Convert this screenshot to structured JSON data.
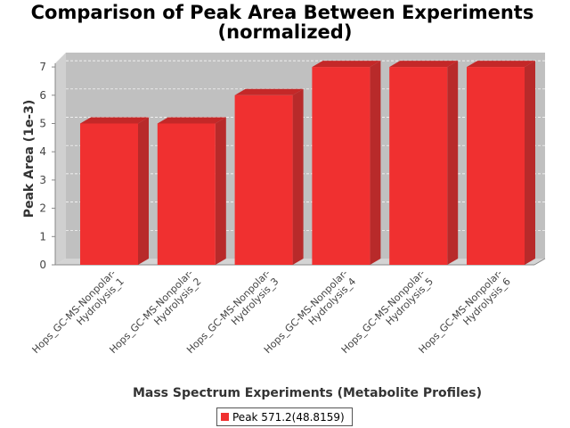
{
  "chart_data": {
    "type": "bar",
    "title_line1": "Comparison of Peak Area Between Experiments",
    "title_line2": "(normalized)",
    "xlabel": "Mass Spectrum Experiments (Metabolite Profiles)",
    "ylabel": "Peak Area (1e-3)",
    "ylim": [
      0,
      7.4
    ],
    "yticks": [
      "0",
      "1",
      "2",
      "3",
      "4",
      "5",
      "6",
      "7"
    ],
    "categories": [
      {
        "line1": "Hops_GC-MS-Nonpolar-",
        "line2": "Hydrolysis_1"
      },
      {
        "line1": "Hops_GC-MS-Nonpolar-",
        "line2": "Hydrolysis_2"
      },
      {
        "line1": "Hops_GC-MS-Nonpolar-",
        "line2": "Hydrolysis_3"
      },
      {
        "line1": "Hops_GC-MS-Nonpolar-",
        "line2": "Hydrolysis_4"
      },
      {
        "line1": "Hops_GC-MS-Nonpolar-",
        "line2": "Hydrolysis_5"
      },
      {
        "line1": "Hops_GC-MS-Nonpolar-",
        "line2": "Hydrolysis_6"
      }
    ],
    "series": [
      {
        "name": "Peak 571.2(48.8159)",
        "values": [
          5,
          5,
          6,
          7,
          7,
          7
        ]
      }
    ],
    "grid": true,
    "legend_position": "bottom",
    "colors": {
      "bar": "#f03030",
      "bar_top": "#c42828",
      "bar_side": "#b82a2a",
      "plot_bg": "#c0c0c0",
      "wall": "#d4d4d4"
    }
  }
}
